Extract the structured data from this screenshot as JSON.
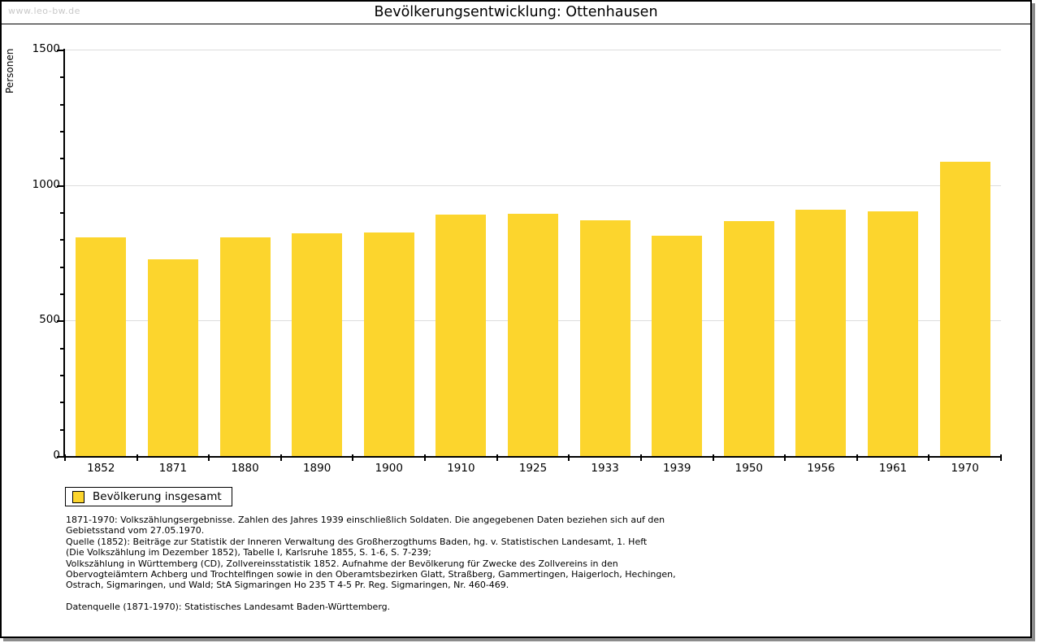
{
  "watermark": "www.leo-bw.de",
  "title": "Bevölkerungsentwicklung: Ottenhausen",
  "chart_data": {
    "type": "bar",
    "title": "Bevölkerungsentwicklung: Ottenhausen",
    "xlabel": "",
    "ylabel": "Personen",
    "categories": [
      "1852",
      "1871",
      "1880",
      "1890",
      "1900",
      "1910",
      "1925",
      "1933",
      "1939",
      "1950",
      "1956",
      "1961",
      "1970"
    ],
    "values": [
      808,
      725,
      806,
      822,
      826,
      892,
      894,
      870,
      814,
      867,
      909,
      904,
      1086
    ],
    "ylim": [
      0,
      1500
    ],
    "ytick_major": 500,
    "ytick_minor": 100,
    "ytick_labels": [
      "0",
      "500",
      "1000",
      "1500"
    ],
    "grid": "horizontal-major",
    "legend": {
      "label": "Bevölkerung insgesamt",
      "position": "bottom-left"
    },
    "bar_color": "#FCD52D",
    "gridline_color": "#DDDDDD"
  },
  "colors": {
    "bar": "#FCD52D",
    "gridline": "#DDDDDD",
    "watermark_text": "#C9C9C9",
    "frame_border": "#000000",
    "frame_shadow": "#8C8C8C",
    "background": "#FFFFFF"
  },
  "footnotes": {
    "lines": [
      "1871-1970: Volkszählungsergebnisse. Zahlen des Jahres 1939 einschließlich Soldaten. Die angegebenen Daten beziehen sich auf den",
      "Gebietsstand vom 27.05.1970.",
      "Quelle (1852): Beiträge zur Statistik der Inneren Verwaltung des Großherzogthums Baden, hg. v. Statistischen Landesamt, 1. Heft",
      "(Die Volkszählung im Dezember 1852), Tabelle I, Karlsruhe 1855, S. 1-6, S. 7-239;",
      "Volkszählung in Württemberg (CD), Zollvereinsstatistik 1852. Aufnahme der Bevölkerung für Zwecke des Zollvereins in den",
      "Obervogteiämtern Achberg und Trochtelfingen sowie in den Oberamtsbezirken Glatt, Straßberg, Gammertingen, Haigerloch, Hechingen,",
      "Ostrach, Sigmaringen, und Wald; StA Sigmaringen Ho 235 T 4-5 Pr. Reg. Sigmaringen, Nr. 460-469."
    ],
    "datasource": "Datenquelle (1871-1970): Statistisches Landesamt Baden-Württemberg."
  }
}
